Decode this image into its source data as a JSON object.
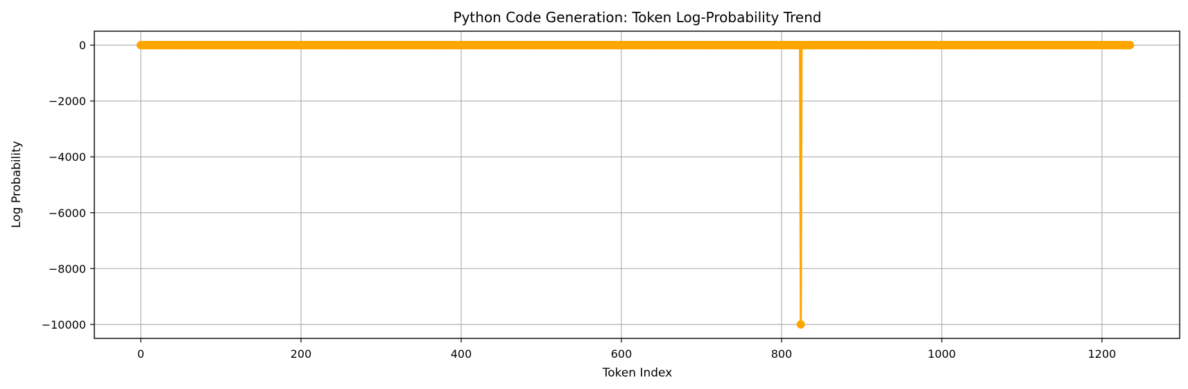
{
  "chart_data": {
    "type": "line",
    "title": "Python Code Generation: Token Log-Probability Trend",
    "xlabel": "Token Index",
    "ylabel": "Log Probability",
    "xlim": [
      -58,
      1297
    ],
    "ylim": [
      -10500,
      500
    ],
    "xticks": [
      0,
      200,
      400,
      600,
      800,
      1000,
      1200
    ],
    "yticks": [
      0,
      -2000,
      -4000,
      -6000,
      -8000,
      -10000
    ],
    "xtick_labels": [
      "0",
      "200",
      "400",
      "600",
      "800",
      "1000",
      "1200"
    ],
    "ytick_labels": [
      "0",
      "−2000",
      "−4000",
      "−6000",
      "−8000",
      "−10000"
    ],
    "grid": true,
    "series": [
      {
        "color": "#FFA500",
        "marker": "circle",
        "count": 1236,
        "baseline": 0,
        "outliers": [
          {
            "x": 824,
            "y": -10000
          }
        ]
      }
    ]
  }
}
